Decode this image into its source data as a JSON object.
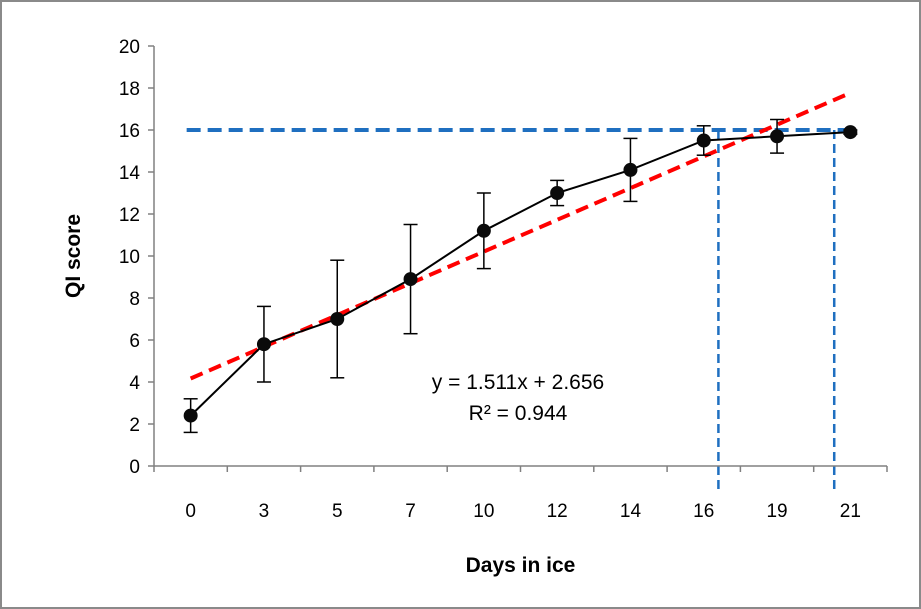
{
  "chart_data": {
    "type": "line",
    "title": "",
    "xlabel": "Days in ice",
    "ylabel": "QI score",
    "categories": [
      "0",
      "3",
      "5",
      "7",
      "10",
      "12",
      "14",
      "16",
      "19",
      "21"
    ],
    "ylim": [
      0,
      20
    ],
    "ytick_step": 2,
    "yticks": [
      "0",
      "2",
      "4",
      "6",
      "8",
      "10",
      "12",
      "14",
      "16",
      "18",
      "20"
    ],
    "grid": false,
    "legend": "none",
    "series": [
      {
        "values": [
          2.4,
          5.8,
          7.0,
          8.9,
          11.2,
          13.0,
          14.1,
          15.5,
          15.7,
          15.9
        ],
        "error": [
          0.8,
          1.8,
          2.8,
          2.6,
          1.8,
          0.6,
          1.5,
          0.7,
          0.8,
          0.1
        ],
        "color": "#000000"
      }
    ],
    "trendline": {
      "slope": 1.511,
      "intercept": 2.656,
      "equation": "y = 1.511x + 2.656",
      "r2": "R² = 0.944",
      "color": "#ff0000"
    },
    "threshold": {
      "y": 16,
      "color": "#1f6fc0",
      "vertical_at_category_positions": [
        7.2,
        8.78
      ]
    }
  }
}
